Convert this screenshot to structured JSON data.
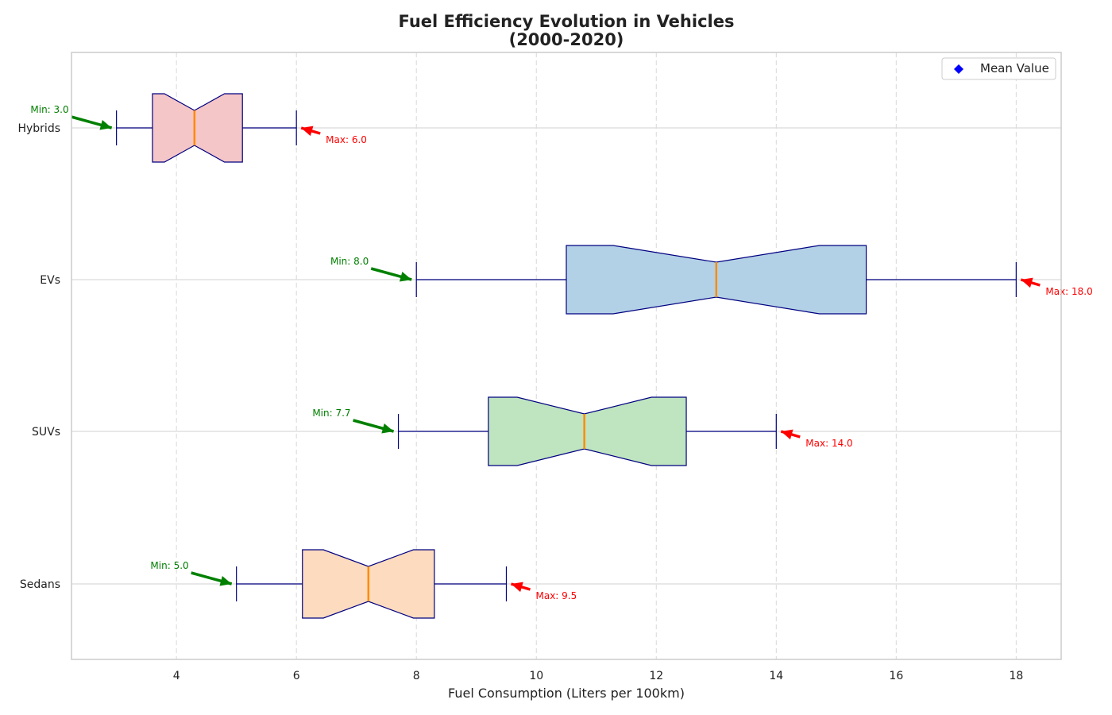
{
  "chart_data": {
    "type": "boxplot",
    "orientation": "horizontal",
    "notched": true,
    "title_line1": "Fuel Efficiency Evolution in Vehicles",
    "title_line2": "(2000-2020)",
    "xlabel": "Fuel Consumption (Liters per 100km)",
    "ylabel": "",
    "xlim": [
      2.25,
      18.75
    ],
    "xticks": [
      4,
      6,
      8,
      10,
      12,
      14,
      16,
      18
    ],
    "grid": "x-dashed",
    "legend": {
      "position": "top-right",
      "entries": [
        {
          "label": "Mean Value",
          "marker": "diamond",
          "color": "#0000ff"
        }
      ]
    },
    "categories": [
      "Sedans",
      "SUVs",
      "EVs",
      "Hybrids"
    ],
    "boxes": [
      {
        "category": "Sedans",
        "min": 5.0,
        "q1": 6.1,
        "median": 7.2,
        "q3": 8.3,
        "max": 9.5,
        "notch_low": 6.45,
        "notch_high": 7.95,
        "fill": "#fddbbf"
      },
      {
        "category": "SUVs",
        "min": 7.7,
        "q1": 9.2,
        "median": 10.8,
        "q3": 12.5,
        "max": 14.0,
        "notch_low": 9.68,
        "notch_high": 11.92,
        "fill": "#bfe4c0"
      },
      {
        "category": "EVs",
        "min": 8.0,
        "q1": 10.5,
        "median": 13.0,
        "q3": 15.5,
        "max": 18.0,
        "notch_low": 11.28,
        "notch_high": 14.72,
        "fill": "#b3d1e6"
      },
      {
        "category": "Hybrids",
        "min": 3.0,
        "q1": 3.6,
        "median": 4.3,
        "q3": 5.1,
        "max": 6.0,
        "notch_low": 3.8,
        "notch_high": 4.8,
        "fill": "#f5c6c8"
      }
    ],
    "annotations": [
      {
        "category": "Sedans",
        "kind": "min",
        "value": 5.0,
        "text": "Min: 5.0",
        "color": "#008000"
      },
      {
        "category": "Sedans",
        "kind": "max",
        "value": 9.5,
        "text": "Max: 9.5",
        "color": "#ff0000"
      },
      {
        "category": "SUVs",
        "kind": "min",
        "value": 7.7,
        "text": "Min: 7.7",
        "color": "#008000"
      },
      {
        "category": "SUVs",
        "kind": "max",
        "value": 14.0,
        "text": "Max: 14.0",
        "color": "#ff0000"
      },
      {
        "category": "EVs",
        "kind": "min",
        "value": 8.0,
        "text": "Min: 8.0",
        "color": "#008000"
      },
      {
        "category": "EVs",
        "kind": "max",
        "value": 18.0,
        "text": "Max: 18.0",
        "color": "#ff0000"
      },
      {
        "category": "Hybrids",
        "kind": "min",
        "value": 3.0,
        "text": "Min: 3.0",
        "color": "#008000"
      },
      {
        "category": "Hybrids",
        "kind": "max",
        "value": 6.0,
        "text": "Max: 6.0",
        "color": "#ff0000"
      }
    ],
    "colors": {
      "box_edge": "#000080",
      "median": "#ff8c00",
      "whisker": "#000080",
      "grid": "#d9d9d9",
      "frame": "#cccccc"
    }
  }
}
